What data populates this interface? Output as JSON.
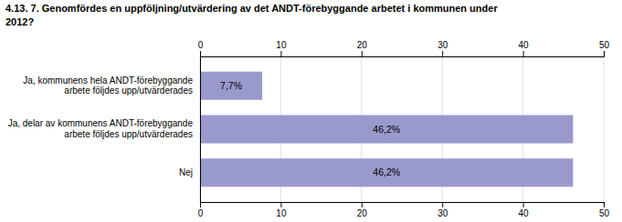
{
  "chart_data": {
    "type": "bar",
    "orientation": "horizontal",
    "title": "4.13. 7. Genomfördes en uppföljning/utvärdering av det ANDT-förebyggande arbetet i kommunen under\n2012?",
    "categories": [
      "Ja, kommunens hela ANDT-förebyggande\narbete följdes upp/utvärderades",
      "Ja, delar av kommunens ANDT-förebyggande\narbete följdes upp/utvärderades",
      "Nej"
    ],
    "values": [
      7.7,
      46.2,
      46.2
    ],
    "value_labels": [
      "7,7%",
      "46,2%",
      "46,2%"
    ],
    "color": "#9999cc",
    "xlim": [
      0,
      50
    ],
    "xticks": [
      0,
      10,
      20,
      30,
      40,
      50
    ],
    "grid": true
  }
}
